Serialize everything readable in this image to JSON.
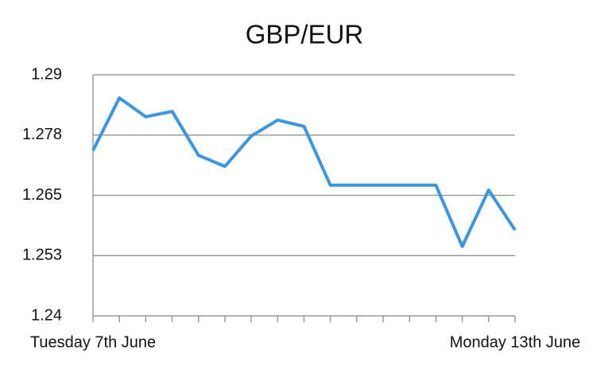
{
  "chart_data": {
    "type": "line",
    "title": "GBP/EUR",
    "categories": [
      "Tuesday 7th June",
      null,
      null,
      null,
      null,
      null,
      null,
      null,
      null,
      null,
      null,
      null,
      null,
      null,
      null,
      null,
      "Monday 13th June"
    ],
    "series": [
      {
        "color": "#3b96e2",
        "values": [
          1.2743,
          1.2852,
          1.2813,
          1.2824,
          1.2733,
          1.271,
          1.2773,
          1.2806,
          1.2793,
          1.2671,
          1.2671,
          1.2671,
          1.2671,
          1.2671,
          1.2544,
          1.2661,
          1.2578
        ]
      }
    ],
    "ylim": [
      1.24,
      1.29
    ],
    "yticks": [
      1.24,
      {
        "value": 1.2525,
        "label": "1.253"
      },
      1.265,
      {
        "value": 1.2775,
        "label": "1.278"
      },
      1.29
    ],
    "grid": true
  }
}
